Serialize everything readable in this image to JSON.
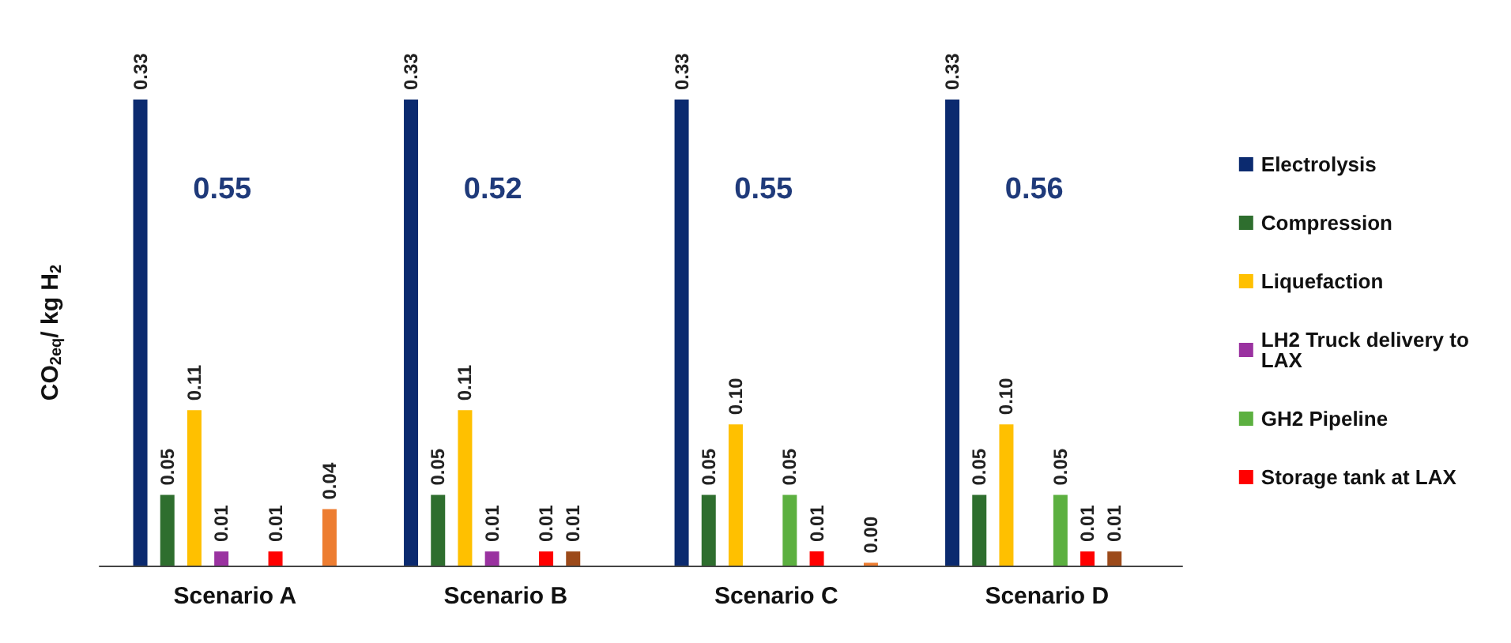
{
  "chart_data": {
    "type": "bar",
    "ylabel": "CO$_{2eq}$/ kg H$_{2}$",
    "categories": [
      "Scenario A",
      "Scenario B",
      "Scenario C",
      "Scenario D"
    ],
    "series": [
      {
        "name": "Electrolysis",
        "color": "#0b2a6f",
        "values": [
          0.33,
          0.33,
          0.33,
          0.33
        ],
        "value_labels": [
          "0.33",
          "0.33",
          "0.33",
          "0.33"
        ]
      },
      {
        "name": "Compression",
        "color": "#2e6e2e",
        "values": [
          0.05,
          0.05,
          0.05,
          0.05
        ],
        "value_labels": [
          "0.05",
          "0.05",
          "0.05",
          "0.05"
        ]
      },
      {
        "name": "Liquefaction",
        "color": "#ffc000",
        "values": [
          0.11,
          0.11,
          0.1,
          0.1
        ],
        "value_labels": [
          "0.11",
          "0.11",
          "0.10",
          "0.10"
        ]
      },
      {
        "name": "LH2 Truck delivery to LAX",
        "color": "#9a32a0",
        "values": [
          0.01,
          0.01,
          null,
          null
        ],
        "value_labels": [
          "0.01",
          "0.01",
          null,
          null
        ]
      },
      {
        "name": "GH2 Pipeline",
        "color": "#5cb040",
        "values": [
          null,
          null,
          0.05,
          0.05
        ],
        "value_labels": [
          null,
          null,
          "0.05",
          "0.05"
        ]
      },
      {
        "name": "Storage tank at LAX",
        "color": "#ff0000",
        "values": [
          0.01,
          0.01,
          0.01,
          0.01
        ],
        "value_labels": [
          "0.01",
          "0.01",
          "0.01",
          "0.01"
        ]
      },
      {
        "color": "#9c4a1a",
        "values": [
          null,
          0.01,
          null,
          0.01
        ],
        "value_labels": [
          null,
          "0.01",
          null,
          "0.01"
        ]
      },
      {
        "color": "#ed7d31",
        "values": [
          0.04,
          null,
          0.002,
          null
        ],
        "value_labels": [
          "0.04",
          null,
          "0.00",
          null
        ]
      }
    ],
    "ylim": [
      0,
      0.33
    ],
    "tick_labels": "x",
    "grid": false,
    "legend": "right",
    "totals": [
      "0.55",
      "0.52",
      "0.55",
      "0.56"
    ]
  }
}
